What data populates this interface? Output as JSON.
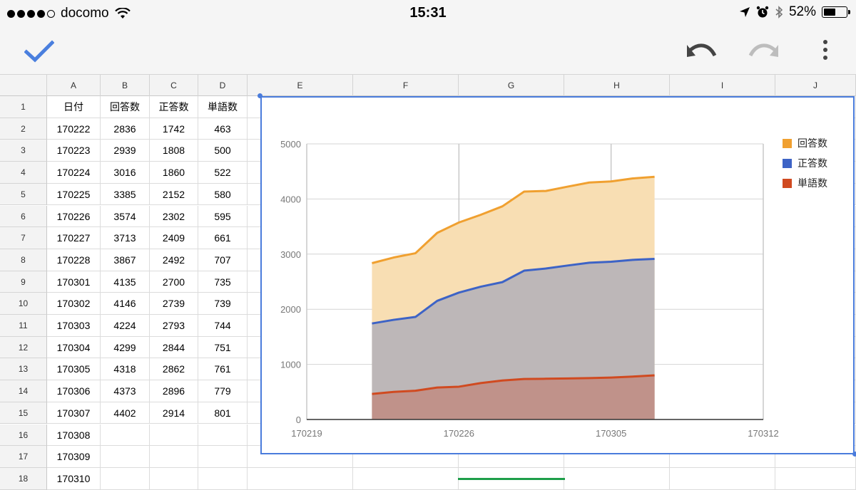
{
  "status_bar": {
    "carrier": "docomo",
    "time": "15:31",
    "battery": "52%",
    "battery_level": 0.52
  },
  "toolbar": {
    "done_icon": "checkmark-icon",
    "undo_icon": "undo-icon",
    "redo_icon": "redo-icon",
    "menu_icon": "more-vert-icon"
  },
  "sheet": {
    "columns": [
      "A",
      "B",
      "C",
      "D",
      "E",
      "F",
      "G",
      "H",
      "I",
      "J"
    ],
    "row_numbers": [
      "1",
      "2",
      "3",
      "4",
      "5",
      "6",
      "7",
      "8",
      "9",
      "10",
      "11",
      "12",
      "13",
      "14",
      "15",
      "16",
      "17",
      "18"
    ],
    "header_row": [
      "日付",
      "回答数",
      "正答数",
      "単語数"
    ],
    "rows": [
      [
        "170222",
        "2836",
        "1742",
        "463"
      ],
      [
        "170223",
        "2939",
        "1808",
        "500"
      ],
      [
        "170224",
        "3016",
        "1860",
        "522"
      ],
      [
        "170225",
        "3385",
        "2152",
        "580"
      ],
      [
        "170226",
        "3574",
        "2302",
        "595"
      ],
      [
        "170227",
        "3713",
        "2409",
        "661"
      ],
      [
        "170228",
        "3867",
        "2492",
        "707"
      ],
      [
        "170301",
        "4135",
        "2700",
        "735"
      ],
      [
        "170302",
        "4146",
        "2739",
        "739"
      ],
      [
        "170303",
        "4224",
        "2793",
        "744"
      ],
      [
        "170304",
        "4299",
        "2844",
        "751"
      ],
      [
        "170305",
        "4318",
        "2862",
        "761"
      ],
      [
        "170306",
        "4373",
        "2896",
        "779"
      ],
      [
        "170307",
        "4402",
        "2914",
        "801"
      ],
      [
        "170308",
        "",
        "",
        ""
      ],
      [
        "170309",
        "",
        "",
        ""
      ],
      [
        "170310",
        "",
        "",
        ""
      ]
    ]
  },
  "chart_data": {
    "type": "area",
    "title": "",
    "xlabel": "",
    "ylabel": "",
    "x": [
      "170222",
      "170223",
      "170224",
      "170225",
      "170226",
      "170227",
      "170228",
      "170301",
      "170302",
      "170303",
      "170304",
      "170305",
      "170306",
      "170307"
    ],
    "x_index": [
      3,
      4,
      5,
      6,
      7,
      8,
      9,
      10,
      11,
      12,
      13,
      14,
      15,
      16
    ],
    "x_ticks": [
      "170219",
      "170226",
      "170305",
      "170312"
    ],
    "x_tick_index": [
      0,
      7,
      14,
      21
    ],
    "xlim_index": [
      0,
      21
    ],
    "y_ticks": [
      "0",
      "1000",
      "2000",
      "3000",
      "4000",
      "5000"
    ],
    "ylim": [
      0,
      5000
    ],
    "grid": true,
    "legend_position": "right",
    "series": [
      {
        "name": "回答数",
        "color": "#f0a030",
        "fill": "#f8deb3",
        "values": [
          2836,
          2939,
          3016,
          3385,
          3574,
          3713,
          3867,
          4135,
          4146,
          4224,
          4299,
          4318,
          4373,
          4402
        ]
      },
      {
        "name": "正答数",
        "color": "#3d63c6",
        "fill": "#bdb7b8",
        "values": [
          1742,
          1808,
          1860,
          2152,
          2302,
          2409,
          2492,
          2700,
          2739,
          2793,
          2844,
          2862,
          2896,
          2914
        ]
      },
      {
        "name": "単語数",
        "color": "#d04a20",
        "fill": "#c0928a",
        "values": [
          463,
          500,
          522,
          580,
          595,
          661,
          707,
          735,
          739,
          744,
          751,
          761,
          779,
          801
        ]
      }
    ]
  }
}
